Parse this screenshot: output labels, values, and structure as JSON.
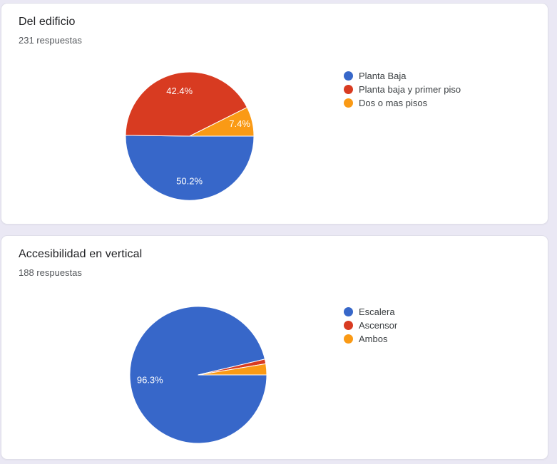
{
  "page_background": "#EAE8F4",
  "cards": [
    {
      "title": "Del edificio",
      "responses": "231 respuestas"
    },
    {
      "title": "Accesibilidad en vertical",
      "responses": "188 respuestas"
    }
  ],
  "chart_data": [
    {
      "type": "pie",
      "title": "Del edificio",
      "subtitle": "231 respuestas",
      "legend_position": "right",
      "start_angle_deg_from_east": 0,
      "direction": "clockwise",
      "slice_label_color": "#FFFFFF",
      "slices": [
        {
          "label": "Planta Baja",
          "percent": 50.2,
          "display_label": "50.2%",
          "color": "#3767C9"
        },
        {
          "label": "Planta baja y primer piso",
          "percent": 42.4,
          "display_label": "42.4%",
          "color": "#D83B21"
        },
        {
          "label": "Dos o mas pisos",
          "percent": 7.4,
          "display_label": "7.4%",
          "color": "#FA9A15"
        }
      ]
    },
    {
      "type": "pie",
      "title": "Accesibilidad en vertical",
      "subtitle": "188 respuestas",
      "legend_position": "right",
      "start_angle_deg_from_east": 0,
      "direction": "clockwise",
      "slice_label_color": "#FFFFFF",
      "slices": [
        {
          "label": "Escalera",
          "percent": 96.3,
          "display_label": "96.3%",
          "color": "#3767C9"
        },
        {
          "label": "Ascensor",
          "percent": 1.1,
          "display_label": "",
          "color": "#D83B21"
        },
        {
          "label": "Ambos",
          "percent": 2.6,
          "display_label": "",
          "color": "#FA9A15"
        }
      ]
    }
  ]
}
